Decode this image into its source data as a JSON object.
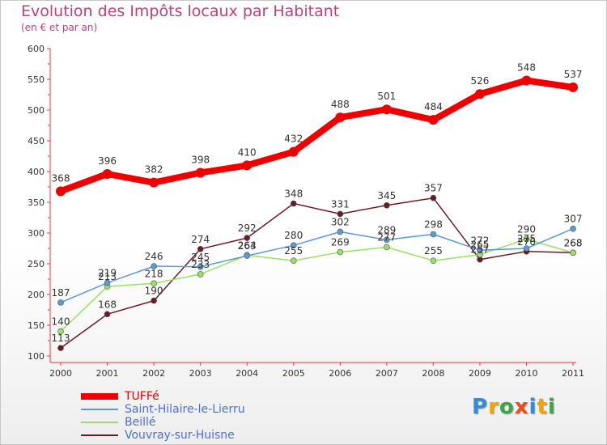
{
  "header": {
    "title": "Evolution des Impôts locaux par Habitant",
    "subtitle": "(en € et par an)"
  },
  "chart_data": {
    "type": "line",
    "title": "Evolution des Impôts locaux par Habitant",
    "subtitle": "(en € et par an)",
    "xlabel": "",
    "ylabel": "",
    "ylim": [
      100,
      600
    ],
    "yticks": [
      100,
      150,
      200,
      250,
      300,
      350,
      400,
      450,
      500,
      550,
      600
    ],
    "grid": false,
    "legend_position": "bottom-left",
    "categories": [
      "2000",
      "2001",
      "2002",
      "2003",
      "2004",
      "2005",
      "2006",
      "2007",
      "2008",
      "2009",
      "2010",
      "2011"
    ],
    "series": [
      {
        "name": "TUFFé",
        "color": "#ee0000",
        "values": [
          368,
          396,
          382,
          398,
          410,
          432,
          488,
          501,
          484,
          526,
          548,
          537
        ]
      },
      {
        "name": "Saint-Hilaire-le-Lierru",
        "color": "#5b9bd5",
        "values": [
          187,
          219,
          246,
          245,
          263,
          280,
          302,
          289,
          298,
          272,
          275,
          307
        ]
      },
      {
        "name": "Beillé",
        "color": "#99e066",
        "values": [
          140,
          213,
          218,
          233,
          264,
          255,
          269,
          277,
          255,
          265,
          290,
          268
        ]
      },
      {
        "name": "Vouvray-sur-Huisne",
        "color": "#6b1c22",
        "values": [
          113,
          168,
          190,
          274,
          292,
          348,
          331,
          345,
          357,
          257,
          270,
          268
        ]
      }
    ]
  },
  "brand": {
    "letters": [
      "P",
      "r",
      "o",
      "x",
      "i",
      "t",
      "i"
    ],
    "colors": [
      "#2e8fd6",
      "#f2a400",
      "#3aa84a",
      "#e94e1b",
      "#2e8fd6",
      "#f2a400",
      "#3aa84a"
    ]
  }
}
